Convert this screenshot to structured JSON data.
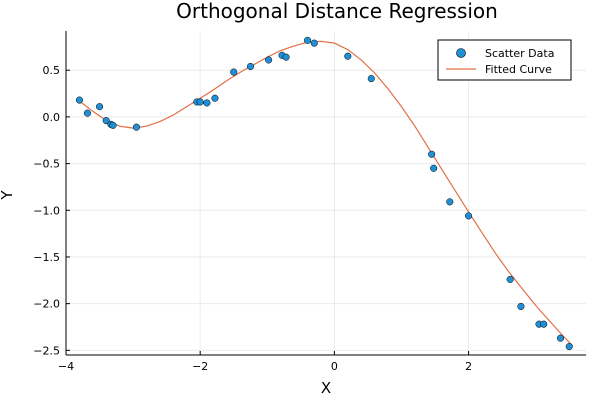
{
  "chart_data": {
    "type": "scatter",
    "title": "Orthogonal Distance Regression",
    "xlabel": "X",
    "ylabel": "Y",
    "xlim": [
      -4.0,
      3.75
    ],
    "ylim": [
      -2.55,
      0.92
    ],
    "x_ticks": [
      -4,
      -2,
      0,
      2
    ],
    "x_tick_labels": [
      "−4",
      "−2",
      "0",
      "2"
    ],
    "y_ticks": [
      0.5,
      0.0,
      -0.5,
      -1.0,
      -1.5,
      -2.0,
      -2.5
    ],
    "y_tick_labels": [
      "0.5",
      "0.0",
      "−0.5",
      "−1.0",
      "−1.5",
      "−2.0",
      "−2.5"
    ],
    "grid": true,
    "legend_position": "top-right",
    "series": [
      {
        "name": "Scatter Data",
        "kind": "scatter",
        "color": "#1f8fd6",
        "points": [
          [
            -3.8,
            0.18
          ],
          [
            -3.68,
            0.04
          ],
          [
            -3.5,
            0.11
          ],
          [
            -3.4,
            -0.04
          ],
          [
            -3.33,
            -0.08
          ],
          [
            -3.3,
            -0.09
          ],
          [
            -2.95,
            -0.11
          ],
          [
            -2.05,
            0.16
          ],
          [
            -2.0,
            0.16
          ],
          [
            -1.9,
            0.15
          ],
          [
            -1.78,
            0.2
          ],
          [
            -1.5,
            0.48
          ],
          [
            -1.25,
            0.54
          ],
          [
            -0.98,
            0.61
          ],
          [
            -0.78,
            0.66
          ],
          [
            -0.72,
            0.64
          ],
          [
            -0.4,
            0.82
          ],
          [
            -0.3,
            0.79
          ],
          [
            0.2,
            0.65
          ],
          [
            0.55,
            0.41
          ],
          [
            1.45,
            -0.4
          ],
          [
            1.48,
            -0.55
          ],
          [
            1.72,
            -0.91
          ],
          [
            2.0,
            -1.06
          ],
          [
            2.62,
            -1.74
          ],
          [
            2.78,
            -2.03
          ],
          [
            3.05,
            -2.22
          ],
          [
            3.12,
            -2.22
          ],
          [
            3.37,
            -2.37
          ],
          [
            3.5,
            -2.46
          ]
        ]
      },
      {
        "name": "Fitted Curve",
        "kind": "line",
        "color": "#e26f46",
        "points": [
          [
            -3.8,
            0.17
          ],
          [
            -3.6,
            0.06
          ],
          [
            -3.4,
            -0.04
          ],
          [
            -3.2,
            -0.1
          ],
          [
            -3.0,
            -0.12
          ],
          [
            -2.8,
            -0.1
          ],
          [
            -2.6,
            -0.05
          ],
          [
            -2.4,
            0.02
          ],
          [
            -2.2,
            0.11
          ],
          [
            -2.0,
            0.2
          ],
          [
            -1.8,
            0.29
          ],
          [
            -1.6,
            0.39
          ],
          [
            -1.4,
            0.48
          ],
          [
            -1.2,
            0.56
          ],
          [
            -1.0,
            0.64
          ],
          [
            -0.8,
            0.71
          ],
          [
            -0.6,
            0.76
          ],
          [
            -0.4,
            0.8
          ],
          [
            -0.2,
            0.81
          ],
          [
            0.0,
            0.79
          ],
          [
            0.2,
            0.72
          ],
          [
            0.4,
            0.61
          ],
          [
            0.6,
            0.47
          ],
          [
            0.8,
            0.3
          ],
          [
            1.0,
            0.11
          ],
          [
            1.2,
            -0.1
          ],
          [
            1.4,
            -0.33
          ],
          [
            1.6,
            -0.56
          ],
          [
            1.8,
            -0.79
          ],
          [
            2.0,
            -1.02
          ],
          [
            2.2,
            -1.24
          ],
          [
            2.4,
            -1.46
          ],
          [
            2.6,
            -1.66
          ],
          [
            2.8,
            -1.84
          ],
          [
            3.0,
            -2.02
          ],
          [
            3.2,
            -2.18
          ],
          [
            3.4,
            -2.34
          ],
          [
            3.55,
            -2.45
          ]
        ]
      }
    ]
  }
}
